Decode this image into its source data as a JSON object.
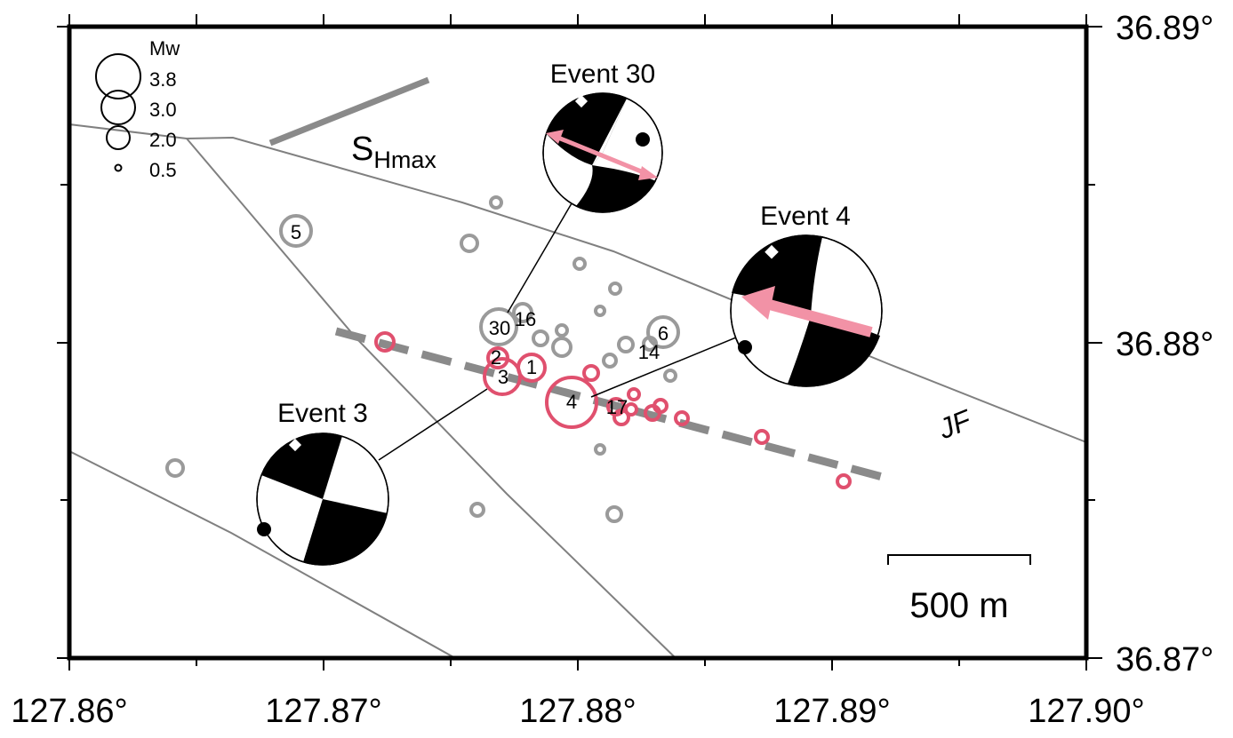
{
  "map": {
    "x_ticks": [
      "127.86°",
      "127.87°",
      "127.88°",
      "127.89°",
      "127.90°"
    ],
    "y_ticks": [
      "36.89°",
      "36.88°",
      "36.87°"
    ],
    "xlim": [
      127.86,
      127.9
    ],
    "ylim": [
      36.87,
      36.89
    ],
    "fault_label": "JF",
    "shmax": {
      "main": "S",
      "sub": "Hmax"
    },
    "scale_bar_label": "500 m",
    "legend": {
      "title": "Mw",
      "entries": [
        {
          "label": "3.8",
          "mw": 3.8
        },
        {
          "label": "3.0",
          "mw": 3.0
        },
        {
          "label": "2.0",
          "mw": 2.0
        },
        {
          "label": "0.5",
          "mw": 0.5
        }
      ]
    },
    "events": [
      {
        "label": "Event 30",
        "id": "30"
      },
      {
        "label": "Event 4",
        "id": "4"
      },
      {
        "label": "Event 3",
        "id": "3"
      }
    ],
    "labeled_quakes": [
      "5",
      "30",
      "16",
      "6",
      "14",
      "2",
      "3",
      "1",
      "4",
      "17"
    ],
    "colors": {
      "gray_quake": "#9a9a9a",
      "red_quake": "#e0506e",
      "arrow": "#f292a6",
      "fault": "#808080"
    }
  }
}
